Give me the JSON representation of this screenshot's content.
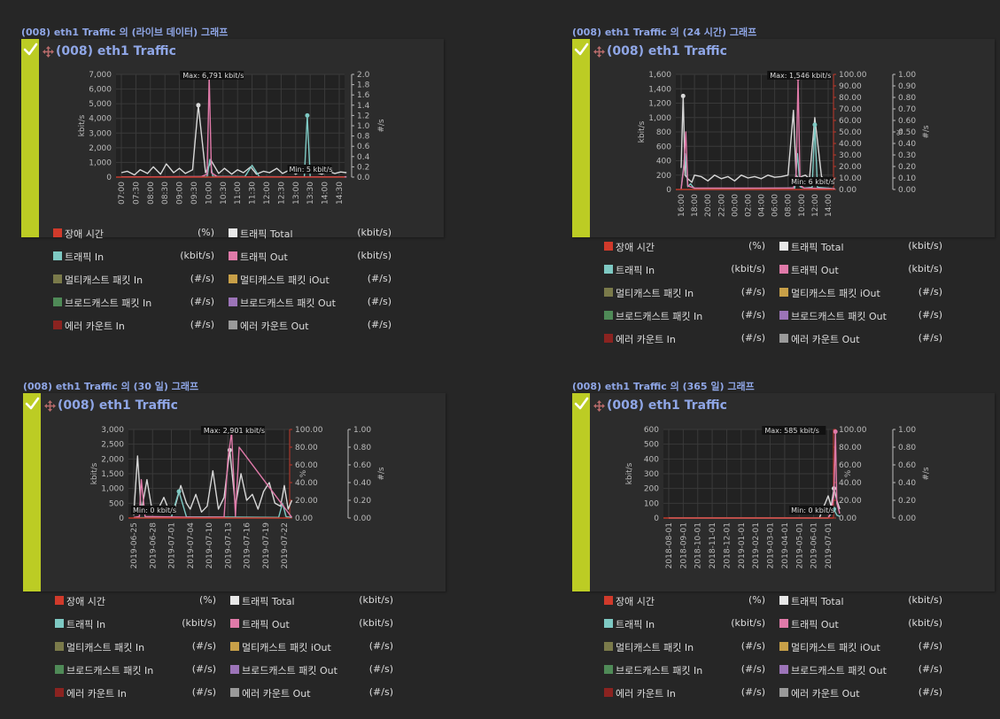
{
  "colors": {
    "background": "#262626",
    "panel": "#2c2c2c",
    "accent": "#bccc24",
    "title": "#8fa6e6",
    "text": "#dcdcdc",
    "grid": "#3a3a3a",
    "axis_red": "#c0392b"
  },
  "graphs": [
    {
      "section_title": "(008) eth1 Traffic 의 (라이브 데이터) 그래프",
      "panel_title": "(008) eth1 Traffic",
      "chart_data": {
        "type": "line",
        "ylabel_left": "kbit/s",
        "ylabel_right1": "#/s",
        "ylim_left": [
          0,
          7000
        ],
        "yticks_left": [
          "0",
          "1,000",
          "2,000",
          "3,000",
          "4,000",
          "5,000",
          "6,000",
          "7,000"
        ],
        "ylim_right1": [
          0,
          2.0
        ],
        "yticks_right1": [
          "0.0",
          "0.2",
          "0.4",
          "0.6",
          "0.8",
          "1.0",
          "1.2",
          "1.4",
          "1.6",
          "1.8",
          "2.0"
        ],
        "x_ticks": [
          "07:00",
          "07:30",
          "08:00",
          "08:30",
          "09:00",
          "09:30",
          "10:00",
          "10:30",
          "11:00",
          "11:30",
          "12:00",
          "12:30",
          "13:00",
          "13:30",
          "14:00",
          "14:30"
        ],
        "max_label": "Max: 6,791 kbit/s",
        "min_label": "Min: 5 kbit/s",
        "series": [
          {
            "name": "트래픽 Total",
            "color": "#d8d8d8",
            "x": [
              0,
              0.4,
              0.9,
              1.3,
              1.8,
              2.2,
              2.7,
              3.1,
              3.6,
              4.0,
              4.4,
              4.9,
              5.3,
              5.8,
              6.2,
              6.7,
              7.1,
              7.6,
              8.0,
              8.4,
              8.9,
              9.3,
              9.8,
              10.2,
              10.7,
              11.1,
              11.6,
              12.0,
              12.4,
              12.9,
              13.3,
              13.8,
              14.2,
              14.7,
              15.1,
              15.5
            ],
            "y": [
              300,
              400,
              150,
              500,
              250,
              700,
              200,
              900,
              300,
              600,
              250,
              500,
              4900,
              300,
              1100,
              250,
              600,
              200,
              500,
              300,
              700,
              200,
              400,
              300,
              600,
              250,
              500,
              200,
              450,
              300,
              350,
              200,
              400,
              250,
              350,
              300
            ]
          },
          {
            "name": "트래픽 In",
            "color": "#7ec9c3",
            "x": [
              0,
              3.0,
              5.9,
              6.1,
              6.3,
              8.5,
              9.0,
              9.5,
              11.5,
              12.6,
              12.8,
              13.0,
              14.0,
              15.5
            ],
            "y": [
              10,
              20,
              30,
              1200,
              40,
              30,
              800,
              30,
              20,
              10,
              4200,
              20,
              10,
              10
            ]
          },
          {
            "name": "트래픽 Out",
            "color": "#e07aa9",
            "x": [
              0,
              5.5,
              5.9,
              6.05,
              6.2,
              6.6,
              8.0,
              15.5
            ],
            "y": [
              10,
              30,
              200,
              6791,
              300,
              30,
              20,
              10
            ]
          }
        ]
      },
      "legend": [
        {
          "name": "장애 시간",
          "unit": "(%)",
          "color": "#d03a2b"
        },
        {
          "name": "트래픽 Total",
          "unit": "(kbit/s)",
          "color": "#e8e8e8"
        },
        {
          "name": "트래픽 In",
          "unit": "(kbit/s)",
          "color": "#7ec9c3"
        },
        {
          "name": "트래픽 Out",
          "unit": "(kbit/s)",
          "color": "#e07aa9"
        },
        {
          "name": "멀티캐스트 패킷 In",
          "unit": "(#/s)",
          "color": "#7a7a4a"
        },
        {
          "name": "멀티캐스트 패킷 iOut",
          "unit": "(#/s)",
          "color": "#c8a048"
        },
        {
          "name": "브로드캐스트 패킷 In",
          "unit": "(#/s)",
          "color": "#4f8a57"
        },
        {
          "name": "브로드캐스트 패킷 Out",
          "unit": "(#/s)",
          "color": "#9c74b8"
        },
        {
          "name": "에러 카운트 In",
          "unit": "(#/s)",
          "color": "#8b2320"
        },
        {
          "name": "에러 카운트 Out",
          "unit": "(#/s)",
          "color": "#9a9a9a"
        }
      ]
    },
    {
      "section_title": "(008) eth1 Traffic 의 (24 시간) 그래프",
      "panel_title": "(008) eth1 Traffic",
      "chart_data": {
        "type": "line",
        "ylabel_left": "kbit/s",
        "ylabel_right1": "%",
        "ylabel_right2": "#/s",
        "ylim_left": [
          0,
          1600
        ],
        "yticks_left": [
          "0",
          "200",
          "400",
          "600",
          "800",
          "1,000",
          "1,200",
          "1,400",
          "1,600"
        ],
        "ylim_right1": [
          0,
          100
        ],
        "yticks_right1": [
          "0.00",
          "10.00",
          "20.00",
          "30.00",
          "40.00",
          "50.00",
          "60.00",
          "70.00",
          "80.00",
          "90.00",
          "100.00"
        ],
        "ylim_right2": [
          0,
          1.0
        ],
        "yticks_right2": [
          "0.00",
          "0.10",
          "0.20",
          "0.30",
          "0.40",
          "0.50",
          "0.60",
          "0.70",
          "0.80",
          "0.90",
          "1.00"
        ],
        "x_ticks": [
          "16:00",
          "18:00",
          "20:00",
          "22:00",
          "00:00",
          "02:00",
          "04:00",
          "06:00",
          "08:00",
          "10:00",
          "12:00",
          "14:00"
        ],
        "max_label": "Max: 1,546 kbit/s",
        "min_label": "Min: 6 kbit/s",
        "series": [
          {
            "name": "트래픽 Total",
            "color": "#d8d8d8",
            "x": [
              0,
              0.15,
              0.3,
              0.5,
              0.8,
              1.0,
              1.5,
              2.0,
              2.5,
              3.0,
              3.5,
              4.0,
              4.5,
              5.0,
              5.5,
              6.0,
              6.5,
              7.0,
              7.5,
              8.0,
              8.4,
              8.6,
              8.8,
              9.0,
              9.3,
              9.6,
              10.0,
              10.5,
              11.0,
              11.5
            ],
            "y": [
              300,
              1300,
              200,
              150,
              100,
              200,
              180,
              120,
              200,
              150,
              180,
              120,
              200,
              160,
              180,
              150,
              200,
              170,
              180,
              200,
              1100,
              200,
              150,
              180,
              200,
              150,
              1000,
              180,
              100,
              150
            ]
          },
          {
            "name": "트래픽 In",
            "color": "#7ec9c3",
            "x": [
              0,
              0.3,
              0.5,
              0.7,
              1.0,
              8.5,
              8.7,
              8.9,
              9.2,
              9.8,
              10.0,
              10.2,
              11.5
            ],
            "y": [
              10,
              500,
              40,
              80,
              10,
              20,
              500,
              40,
              20,
              30,
              900,
              30,
              10
            ]
          },
          {
            "name": "트래픽 Out",
            "color": "#e07aa9",
            "x": [
              0,
              0.2,
              0.35,
              0.5,
              1.0,
              8.4,
              8.6,
              8.75,
              8.9,
              9.2,
              11.5
            ],
            "y": [
              10,
              300,
              800,
              50,
              20,
              20,
              200,
              1546,
              60,
              20,
              10
            ]
          }
        ]
      },
      "legend": [
        {
          "name": "장애 시간",
          "unit": "(%)",
          "color": "#d03a2b"
        },
        {
          "name": "트래픽 Total",
          "unit": "(kbit/s)",
          "color": "#e8e8e8"
        },
        {
          "name": "트래픽 In",
          "unit": "(kbit/s)",
          "color": "#7ec9c3"
        },
        {
          "name": "트래픽 Out",
          "unit": "(kbit/s)",
          "color": "#e07aa9"
        },
        {
          "name": "멀티캐스트 패킷 In",
          "unit": "(#/s)",
          "color": "#7a7a4a"
        },
        {
          "name": "멀티캐스트 패킷 iOut",
          "unit": "(#/s)",
          "color": "#c8a048"
        },
        {
          "name": "브로드캐스트 패킷 In",
          "unit": "(#/s)",
          "color": "#4f8a57"
        },
        {
          "name": "브로드캐스트 패킷 Out",
          "unit": "(#/s)",
          "color": "#9c74b8"
        },
        {
          "name": "에러 카운트 In",
          "unit": "(#/s)",
          "color": "#8b2320"
        },
        {
          "name": "에러 카운트 Out",
          "unit": "(#/s)",
          "color": "#9a9a9a"
        }
      ]
    },
    {
      "section_title": "(008) eth1 Traffic 의 (30 일) 그래프",
      "panel_title": "(008) eth1 Traffic",
      "chart_data": {
        "type": "line",
        "ylabel_left": "kbit/s",
        "ylabel_right1": "%",
        "ylabel_right2": "#/s",
        "ylim_left": [
          0,
          3000
        ],
        "yticks_left": [
          "0",
          "500",
          "1,000",
          "1,500",
          "2,000",
          "2,500",
          "3,000"
        ],
        "ylim_right1": [
          0,
          100
        ],
        "yticks_right1": [
          "0.00",
          "20.00",
          "40.00",
          "60.00",
          "80.00",
          "100.00"
        ],
        "ylim_right2": [
          0,
          1.0
        ],
        "yticks_right2": [
          "0.00",
          "0.20",
          "0.40",
          "0.60",
          "0.80",
          "1.00"
        ],
        "x_ticks": [
          "2019-06-25",
          "2019-06-28",
          "2019-07-01",
          "2019-07-04",
          "2019-07-10",
          "2019-07-13",
          "2019-07-16",
          "2019-07-19",
          "2019-07-22"
        ],
        "max_label": "Max: 2,901 kbit/s",
        "min_label": "Min: 0 kbit/s",
        "series": [
          {
            "name": "트래픽 Total",
            "color": "#d8d8d8",
            "x": [
              0,
              0.2,
              0.4,
              0.7,
              1.0,
              1.3,
              1.6,
              1.9,
              2.2,
              2.5,
              2.8,
              3.0,
              3.3,
              3.6,
              3.9,
              4.2,
              4.5,
              4.8,
              5.1,
              5.4,
              5.7,
              6.0,
              6.3,
              6.6,
              6.9,
              7.2,
              7.5,
              7.8,
              8.0,
              8.2,
              8.4
            ],
            "y": [
              100,
              2100,
              200,
              1300,
              150,
              300,
              700,
              200,
              400,
              1100,
              500,
              300,
              800,
              200,
              400,
              1600,
              300,
              700,
              2300,
              400,
              1500,
              600,
              800,
              300,
              900,
              1200,
              500,
              400,
              1100,
              300,
              600
            ]
          },
          {
            "name": "트래픽 In",
            "color": "#7ec9c3",
            "x": [
              0,
              2.0,
              2.4,
              2.8,
              5.0,
              7.7,
              7.9,
              8.1,
              8.4
            ],
            "y": [
              10,
              30,
              900,
              40,
              30,
              20,
              500,
              40,
              20
            ]
          },
          {
            "name": "트래픽 Out",
            "color": "#e07aa9",
            "x": [
              0,
              0.3,
              0.4,
              0.6,
              3.5,
              4.8,
              5.0,
              5.2,
              5.4,
              5.6,
              8.4
            ],
            "y": [
              20,
              50,
              1300,
              50,
              20,
              30,
              2000,
              2901,
              60,
              2400,
              20
            ]
          }
        ]
      },
      "legend": [
        {
          "name": "장애 시간",
          "unit": "(%)",
          "color": "#d03a2b"
        },
        {
          "name": "트래픽 Total",
          "unit": "(kbit/s)",
          "color": "#e8e8e8"
        },
        {
          "name": "트래픽 In",
          "unit": "(kbit/s)",
          "color": "#7ec9c3"
        },
        {
          "name": "트래픽 Out",
          "unit": "(kbit/s)",
          "color": "#e07aa9"
        },
        {
          "name": "멀티캐스트 패킷 In",
          "unit": "(#/s)",
          "color": "#7a7a4a"
        },
        {
          "name": "멀티캐스트 패킷 iOut",
          "unit": "(#/s)",
          "color": "#c8a048"
        },
        {
          "name": "브로드캐스트 패킷 In",
          "unit": "(#/s)",
          "color": "#4f8a57"
        },
        {
          "name": "브로드캐스트 패킷 Out",
          "unit": "(#/s)",
          "color": "#9c74b8"
        },
        {
          "name": "에러 카운트 In",
          "unit": "(#/s)",
          "color": "#8b2320"
        },
        {
          "name": "에러 카운트 Out",
          "unit": "(#/s)",
          "color": "#9a9a9a"
        }
      ]
    },
    {
      "section_title": "(008) eth1 Traffic 의 (365 일) 그래프",
      "panel_title": "(008) eth1 Traffic",
      "chart_data": {
        "type": "line",
        "ylabel_left": "kbit/s",
        "ylabel_right1": "%",
        "ylabel_right2": "#/s",
        "ylim_left": [
          0,
          600
        ],
        "yticks_left": [
          "0",
          "100",
          "200",
          "300",
          "400",
          "500",
          "600"
        ],
        "ylim_right1": [
          0,
          100
        ],
        "yticks_right1": [
          "0.00",
          "20.00",
          "40.00",
          "60.00",
          "80.00",
          "100.00"
        ],
        "ylim_right2": [
          0,
          1.0
        ],
        "yticks_right2": [
          "0.00",
          "0.20",
          "0.40",
          "0.60",
          "0.80",
          "1.00"
        ],
        "x_ticks": [
          "2018-08-01",
          "2018-09-01",
          "2018-10-01",
          "2018-11-01",
          "2018-12-01",
          "2019-01-01",
          "2019-02-01",
          "2019-03-01",
          "2019-04-01",
          "2019-05-01",
          "2019-06-01",
          "2019-07-01"
        ],
        "max_label": "Max: 585 kbit/s",
        "min_label": "Min: 0 kbit/s",
        "series": [
          {
            "name": "트래픽 Total",
            "color": "#d8d8d8",
            "x": [
              0,
              10.4,
              10.6,
              10.8,
              11.0,
              11.2,
              11.4,
              11.6,
              11.8
            ],
            "y": [
              0,
              0,
              60,
              100,
              150,
              80,
              200,
              120,
              60
            ]
          },
          {
            "name": "트래픽 In",
            "color": "#7ec9c3",
            "x": [
              0,
              11.0,
              11.2,
              11.4,
              11.6,
              11.8
            ],
            "y": [
              0,
              0,
              30,
              60,
              20,
              10
            ]
          },
          {
            "name": "트래픽 Out",
            "color": "#e07aa9",
            "x": [
              0,
              11.0,
              11.2,
              11.4,
              11.5,
              11.6,
              11.8
            ],
            "y": [
              0,
              0,
              40,
              150,
              585,
              100,
              30
            ]
          }
        ]
      },
      "legend": [
        {
          "name": "장애 시간",
          "unit": "(%)",
          "color": "#d03a2b"
        },
        {
          "name": "트래픽 Total",
          "unit": "(kbit/s)",
          "color": "#e8e8e8"
        },
        {
          "name": "트래픽 In",
          "unit": "(kbit/s)",
          "color": "#7ec9c3"
        },
        {
          "name": "트래픽 Out",
          "unit": "(kbit/s)",
          "color": "#e07aa9"
        },
        {
          "name": "멀티캐스트 패킷 In",
          "unit": "(#/s)",
          "color": "#7a7a4a"
        },
        {
          "name": "멀티캐스트 패킷 iOut",
          "unit": "(#/s)",
          "color": "#c8a048"
        },
        {
          "name": "브로드캐스트 패킷 In",
          "unit": "(#/s)",
          "color": "#4f8a57"
        },
        {
          "name": "브로드캐스트 패킷 Out",
          "unit": "(#/s)",
          "color": "#9c74b8"
        },
        {
          "name": "에러 카운트 In",
          "unit": "(#/s)",
          "color": "#8b2320"
        },
        {
          "name": "에러 카운트 Out",
          "unit": "(#/s)",
          "color": "#9a9a9a"
        }
      ]
    }
  ]
}
